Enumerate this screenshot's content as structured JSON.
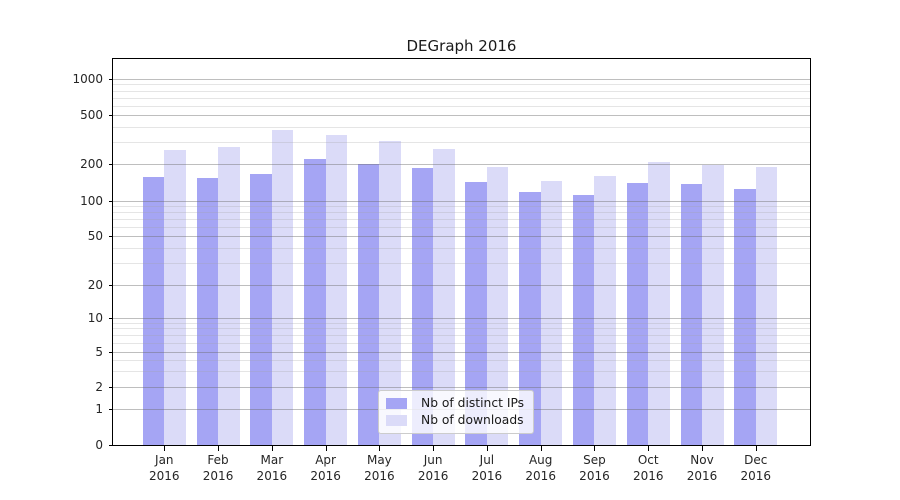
{
  "chart_data": {
    "type": "bar",
    "title": "DEGraph 2016",
    "categories": [
      "Jan",
      "Feb",
      "Mar",
      "Apr",
      "May",
      "Jun",
      "Jul",
      "Aug",
      "Sep",
      "Oct",
      "Nov",
      "Dec"
    ],
    "category_year": "2016",
    "series": [
      {
        "name": "Nb of distinct IPs",
        "color_key": "ips",
        "values": [
          156,
          153,
          165,
          222,
          201,
          186,
          142,
          118,
          112,
          140,
          139,
          126
        ]
      },
      {
        "name": "Nb of downloads",
        "color_key": "downloads",
        "values": [
          263,
          276,
          380,
          342,
          309,
          266,
          190,
          147,
          159,
          207,
          196,
          191
        ]
      }
    ],
    "yscale": "symlog",
    "y_ticks": [
      0,
      1,
      2,
      5,
      10,
      20,
      50,
      100,
      200,
      500,
      1000
    ],
    "y_minor_ticks": [
      3,
      4,
      6,
      7,
      8,
      9,
      30,
      40,
      60,
      70,
      80,
      90,
      300,
      400,
      600,
      700,
      800,
      900
    ],
    "ylim": [
      0,
      1400
    ],
    "grid": true,
    "legend_position": "lower-center",
    "xlabel": "",
    "ylabel": ""
  },
  "legend": {
    "items": [
      {
        "label": "Nb of distinct IPs",
        "swatch": "ips"
      },
      {
        "label": "Nb of downloads",
        "swatch": "downloads"
      }
    ]
  },
  "colors": {
    "ips": "#a5a5f4",
    "downloads": "#dbdbf8",
    "background": "#ffffff",
    "spine": "#000000",
    "grid_major": "#b4b4b4",
    "grid_minor": "#e2e2e2",
    "text": "#262626"
  }
}
